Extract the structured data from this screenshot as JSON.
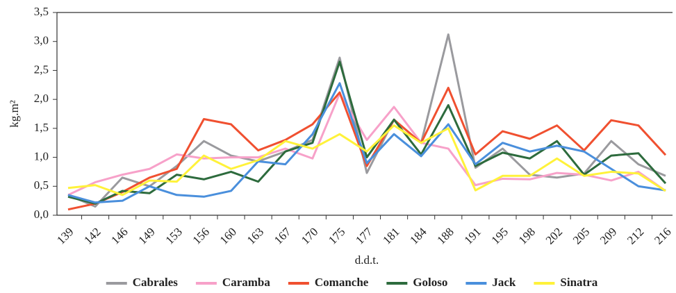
{
  "chart_data": {
    "type": "line",
    "x_label": "d.d.t.",
    "y_label": "kg.m²",
    "categories": [
      "139",
      "142",
      "146",
      "149",
      "153",
      "156",
      "160",
      "163",
      "167",
      "170",
      "175",
      "177",
      "181",
      "184",
      "188",
      "191",
      "195",
      "198",
      "202",
      "205",
      "209",
      "212",
      "216"
    ],
    "series": [
      {
        "name": "Cabrales",
        "color": "#9a9a9e",
        "values": [
          0.35,
          0.15,
          0.65,
          0.5,
          0.85,
          1.28,
          1.03,
          0.93,
          1.1,
          1.3,
          2.72,
          0.73,
          1.65,
          1.25,
          3.12,
          0.82,
          1.15,
          0.7,
          0.65,
          0.72,
          1.28,
          0.88,
          0.68
        ]
      },
      {
        "name": "Caramba",
        "color": "#f7a1c9",
        "values": [
          0.35,
          0.57,
          0.7,
          0.8,
          1.05,
          0.98,
          1.0,
          1.0,
          1.15,
          0.98,
          2.1,
          1.3,
          1.87,
          1.25,
          1.15,
          0.52,
          0.63,
          0.62,
          0.73,
          0.7,
          0.6,
          0.75,
          0.42
        ]
      },
      {
        "name": "Comanche",
        "color": "#f05030",
        "values": [
          0.1,
          0.2,
          0.4,
          0.65,
          0.8,
          1.66,
          1.57,
          1.12,
          1.3,
          1.57,
          2.12,
          0.85,
          1.65,
          1.25,
          2.2,
          1.05,
          1.45,
          1.32,
          1.55,
          1.12,
          1.64,
          1.55,
          1.04
        ]
      },
      {
        "name": "Goloso",
        "color": "#2d6b3d",
        "values": [
          0.32,
          0.2,
          0.42,
          0.38,
          0.7,
          0.62,
          0.75,
          0.58,
          1.1,
          1.25,
          2.65,
          1.0,
          1.65,
          1.05,
          1.9,
          0.85,
          1.08,
          0.98,
          1.28,
          0.7,
          1.03,
          1.07,
          0.55
        ]
      },
      {
        "name": "Jack",
        "color": "#4a8fdc",
        "values": [
          0.35,
          0.22,
          0.25,
          0.5,
          0.35,
          0.32,
          0.42,
          0.93,
          0.88,
          1.4,
          2.28,
          0.9,
          1.4,
          1.02,
          1.57,
          0.88,
          1.25,
          1.1,
          1.2,
          1.1,
          0.8,
          0.5,
          0.43
        ]
      },
      {
        "name": "Sinatra",
        "color": "#fff23a",
        "values": [
          0.47,
          0.52,
          0.35,
          0.6,
          0.58,
          1.03,
          0.8,
          0.95,
          1.28,
          1.15,
          1.4,
          1.1,
          1.55,
          1.25,
          1.5,
          0.43,
          0.68,
          0.68,
          0.98,
          0.68,
          0.75,
          0.72,
          0.42
        ]
      }
    ],
    "ylim": [
      0,
      3.5
    ],
    "yticks": [
      {
        "value": 0,
        "label": "0,0"
      },
      {
        "value": 0.5,
        "label": "0,5"
      },
      {
        "value": 1,
        "label": "1,0"
      },
      {
        "value": 1.5,
        "label": "1,5"
      },
      {
        "value": 2,
        "label": "2,0"
      },
      {
        "value": 2.5,
        "label": "2,5"
      },
      {
        "value": 3,
        "label": "3,0"
      },
      {
        "value": 3.5,
        "label": "3,5"
      }
    ]
  }
}
